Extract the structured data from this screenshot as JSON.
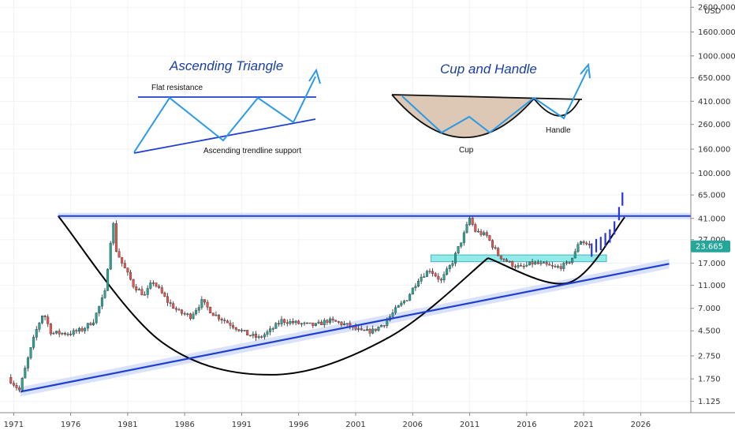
{
  "chart_data": {
    "type": "candlestick",
    "title": "",
    "xlabel": "",
    "ylabel": "",
    "currency_label": "USD",
    "y_scale": "log",
    "ylim": [
      0.9,
      3000
    ],
    "x_range": [
      1969.8,
      2030.4
    ],
    "x_tick_labels": [
      "1971",
      "1976",
      "1981",
      "1986",
      "1991",
      "1996",
      "2001",
      "2006",
      "2011",
      "2016",
      "2021",
      "2026"
    ],
    "y_tick_labels": [
      "2600.000",
      "1600.000",
      "1000.000",
      "650.000",
      "410.000",
      "260.000",
      "160.000",
      "100.000",
      "65.000",
      "41.000",
      "27.000",
      "17.000",
      "11.000",
      "7.000",
      "4.500",
      "2.750",
      "1.750",
      "1.125"
    ],
    "last_price": {
      "label": "23.665",
      "value": 23.665,
      "color": "#26a69a"
    },
    "colors": {
      "up": "#26a69a",
      "down": "#ef5350",
      "wick": "#222222",
      "projection": "#2b35e0",
      "trendline": "#1f3fd0",
      "cup": "#000000",
      "zone": "#7fe7e7",
      "annotation": "#1a3fa0",
      "arrow": "#2a9ae6"
    },
    "price_series": {
      "x": [
        1970.5,
        1971.5,
        1972.2,
        1973.0,
        1973.6,
        1974.3,
        1975.0,
        1976.0,
        1977.0,
        1978.0,
        1979.0,
        1979.7,
        1980.0,
        1980.5,
        1981.5,
        1982.5,
        1983.2,
        1984.5,
        1985.5,
        1986.5,
        1987.5,
        1988.5,
        1989.5,
        1990.5,
        1991.5,
        1992.5,
        1993.5,
        1994.5,
        1995.5,
        1996.5,
        1997.5,
        1998.5,
        1999.5,
        2000.5,
        2001.5,
        2002.5,
        2003.5,
        2004.5,
        2005.5,
        2006.5,
        2007.5,
        2008.5,
        2009.5,
        2010.5,
        2011.0,
        2011.5,
        2012.5,
        2013.5,
        2014.5,
        2015.5,
        2016.5,
        2017.5,
        2018.5,
        2019.5,
        2020.2,
        2020.6,
        2021.5
      ],
      "y": [
        1.8,
        1.4,
        2.5,
        4.6,
        6.5,
        4.3,
        4.3,
        4.3,
        4.6,
        5.5,
        9.5,
        40.0,
        22.0,
        17.0,
        11.0,
        9.0,
        12.0,
        8.0,
        6.5,
        6.0,
        8.0,
        6.3,
        5.5,
        4.8,
        4.2,
        3.9,
        4.5,
        5.5,
        5.3,
        5.1,
        5.0,
        5.5,
        5.3,
        4.9,
        4.4,
        4.5,
        5.2,
        6.8,
        8.5,
        12.5,
        15.0,
        12.0,
        17.5,
        30.0,
        41.0,
        32.0,
        29.0,
        20.0,
        17.0,
        15.5,
        17.0,
        16.5,
        15.5,
        16.5,
        20.0,
        27.0,
        24.0
      ]
    },
    "projection_series": {
      "x": [
        2021.7,
        2022.1,
        2022.5,
        2022.9,
        2023.3,
        2023.7,
        2024.1,
        2024.4
      ],
      "y": [
        22.0,
        24.0,
        25.0,
        27.0,
        29.0,
        34.0,
        45.0,
        60.0
      ]
    },
    "overlays": {
      "resistance": {
        "x": [
          1974.9,
          2030.4
        ],
        "y": [
          43.0,
          43.0
        ]
      },
      "support_trendline": {
        "x": [
          1971.6,
          2028.5
        ],
        "y": [
          1.36,
          16.8
        ]
      },
      "cup_curve_1": {
        "x": [
          1974.9,
          1984.0,
          1994.0,
          2004.0,
          2012.6
        ],
        "y": [
          43.0,
          3.6,
          1.9,
          4.0,
          18.8
        ]
      },
      "cup_curve_2": {
        "x": [
          2012.6,
          2019.7,
          2024.6
        ],
        "y": [
          18.8,
          11.6,
          42.0
        ]
      },
      "handle_zone": {
        "x": [
          2007.6,
          2023.0
        ],
        "y": [
          17.5,
          20.0
        ]
      }
    },
    "inset_diagrams": [
      {
        "title": "Ascending Triangle",
        "labels": [
          "Flat resistance",
          "Ascending trendline support"
        ]
      },
      {
        "title": "Cup and Handle",
        "labels": [
          "Cup",
          "Handle"
        ]
      }
    ]
  }
}
